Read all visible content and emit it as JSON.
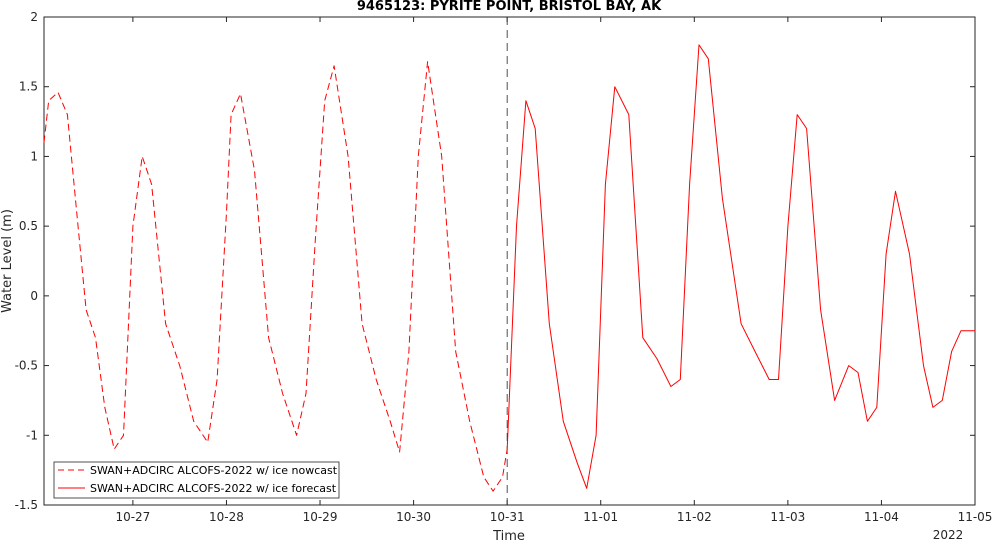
{
  "chart_data": {
    "type": "line",
    "title": "9465123: PYRITE POINT, BRISTOL BAY, AK",
    "xlabel": "Time",
    "ylabel": "Water Level (m)",
    "x_tick_labels": [
      "10-27",
      "10-28",
      "10-29",
      "10-30",
      "10-31",
      "11-01",
      "11-02",
      "11-03",
      "11-04",
      "11-05"
    ],
    "x_ticks_days": [
      27,
      28,
      29,
      30,
      31,
      32,
      33,
      34,
      35,
      36
    ],
    "year_label": "2022",
    "xlim_days": [
      26.05,
      36.0
    ],
    "ylim": [
      -1.5,
      2
    ],
    "y_ticks": [
      -1.5,
      -1,
      -0.5,
      0,
      0.5,
      1,
      1.5,
      2
    ],
    "y_tick_labels": [
      "-1.5",
      "-1",
      "-0.5",
      "0",
      "0.5",
      "1",
      "1.5",
      "2"
    ],
    "grid": false,
    "legend_position": "bottom-left",
    "divider_day": 31,
    "line_color": "#ff0000",
    "series": [
      {
        "name": "SWAN+ADCIRC ALCOFS-2022 w/ ice nowcast",
        "style": "dashed",
        "x": [
          26.05,
          26.1,
          26.2,
          26.3,
          26.4,
          26.5,
          26.6,
          26.7,
          26.8,
          26.9,
          27.0,
          27.1,
          27.2,
          27.35,
          27.5,
          27.65,
          27.8,
          27.9,
          28.0,
          28.05,
          28.15,
          28.3,
          28.45,
          28.6,
          28.75,
          28.85,
          28.95,
          29.05,
          29.15,
          29.3,
          29.45,
          29.6,
          29.75,
          29.85,
          29.95,
          30.05,
          30.15,
          30.3,
          30.45,
          30.6,
          30.75,
          30.85,
          30.95,
          31.0
        ],
        "y": [
          1.1,
          1.4,
          1.46,
          1.3,
          0.6,
          -0.1,
          -0.3,
          -0.8,
          -1.1,
          -1.0,
          0.5,
          1.0,
          0.8,
          -0.2,
          -0.5,
          -0.9,
          -1.05,
          -0.6,
          0.6,
          1.3,
          1.45,
          0.9,
          -0.3,
          -0.7,
          -1.0,
          -0.7,
          0.4,
          1.4,
          1.65,
          1.0,
          -0.2,
          -0.6,
          -0.9,
          -1.12,
          -0.4,
          1.0,
          1.68,
          1.0,
          -0.4,
          -0.9,
          -1.3,
          -1.4,
          -1.3,
          -1.1
        ]
      },
      {
        "name": "SWAN+ADCIRC ALCOFS-2022 w/ ice forecast",
        "style": "solid",
        "x": [
          31.0,
          31.1,
          31.2,
          31.3,
          31.45,
          31.6,
          31.75,
          31.85,
          31.95,
          32.05,
          32.15,
          32.3,
          32.45,
          32.6,
          32.75,
          32.85,
          32.95,
          33.05,
          33.15,
          33.3,
          33.5,
          33.65,
          33.8,
          33.9,
          34.0,
          34.1,
          34.2,
          34.35,
          34.5,
          34.65,
          34.75,
          34.85,
          34.95,
          35.05,
          35.15,
          35.3,
          35.45,
          35.55,
          35.65,
          35.75,
          35.85,
          35.95,
          36.0
        ],
        "y": [
          -1.1,
          0.5,
          1.4,
          1.2,
          -0.2,
          -0.9,
          -1.2,
          -1.38,
          -1.0,
          0.8,
          1.5,
          1.3,
          -0.3,
          -0.45,
          -0.65,
          -0.6,
          0.8,
          1.8,
          1.7,
          0.7,
          -0.2,
          -0.4,
          -0.6,
          -0.6,
          0.5,
          1.3,
          1.2,
          -0.1,
          -0.75,
          -0.5,
          -0.55,
          -0.9,
          -0.8,
          0.3,
          0.75,
          0.3,
          -0.5,
          -0.8,
          -0.75,
          -0.4,
          -0.25,
          -0.25,
          -0.25
        ]
      }
    ]
  }
}
